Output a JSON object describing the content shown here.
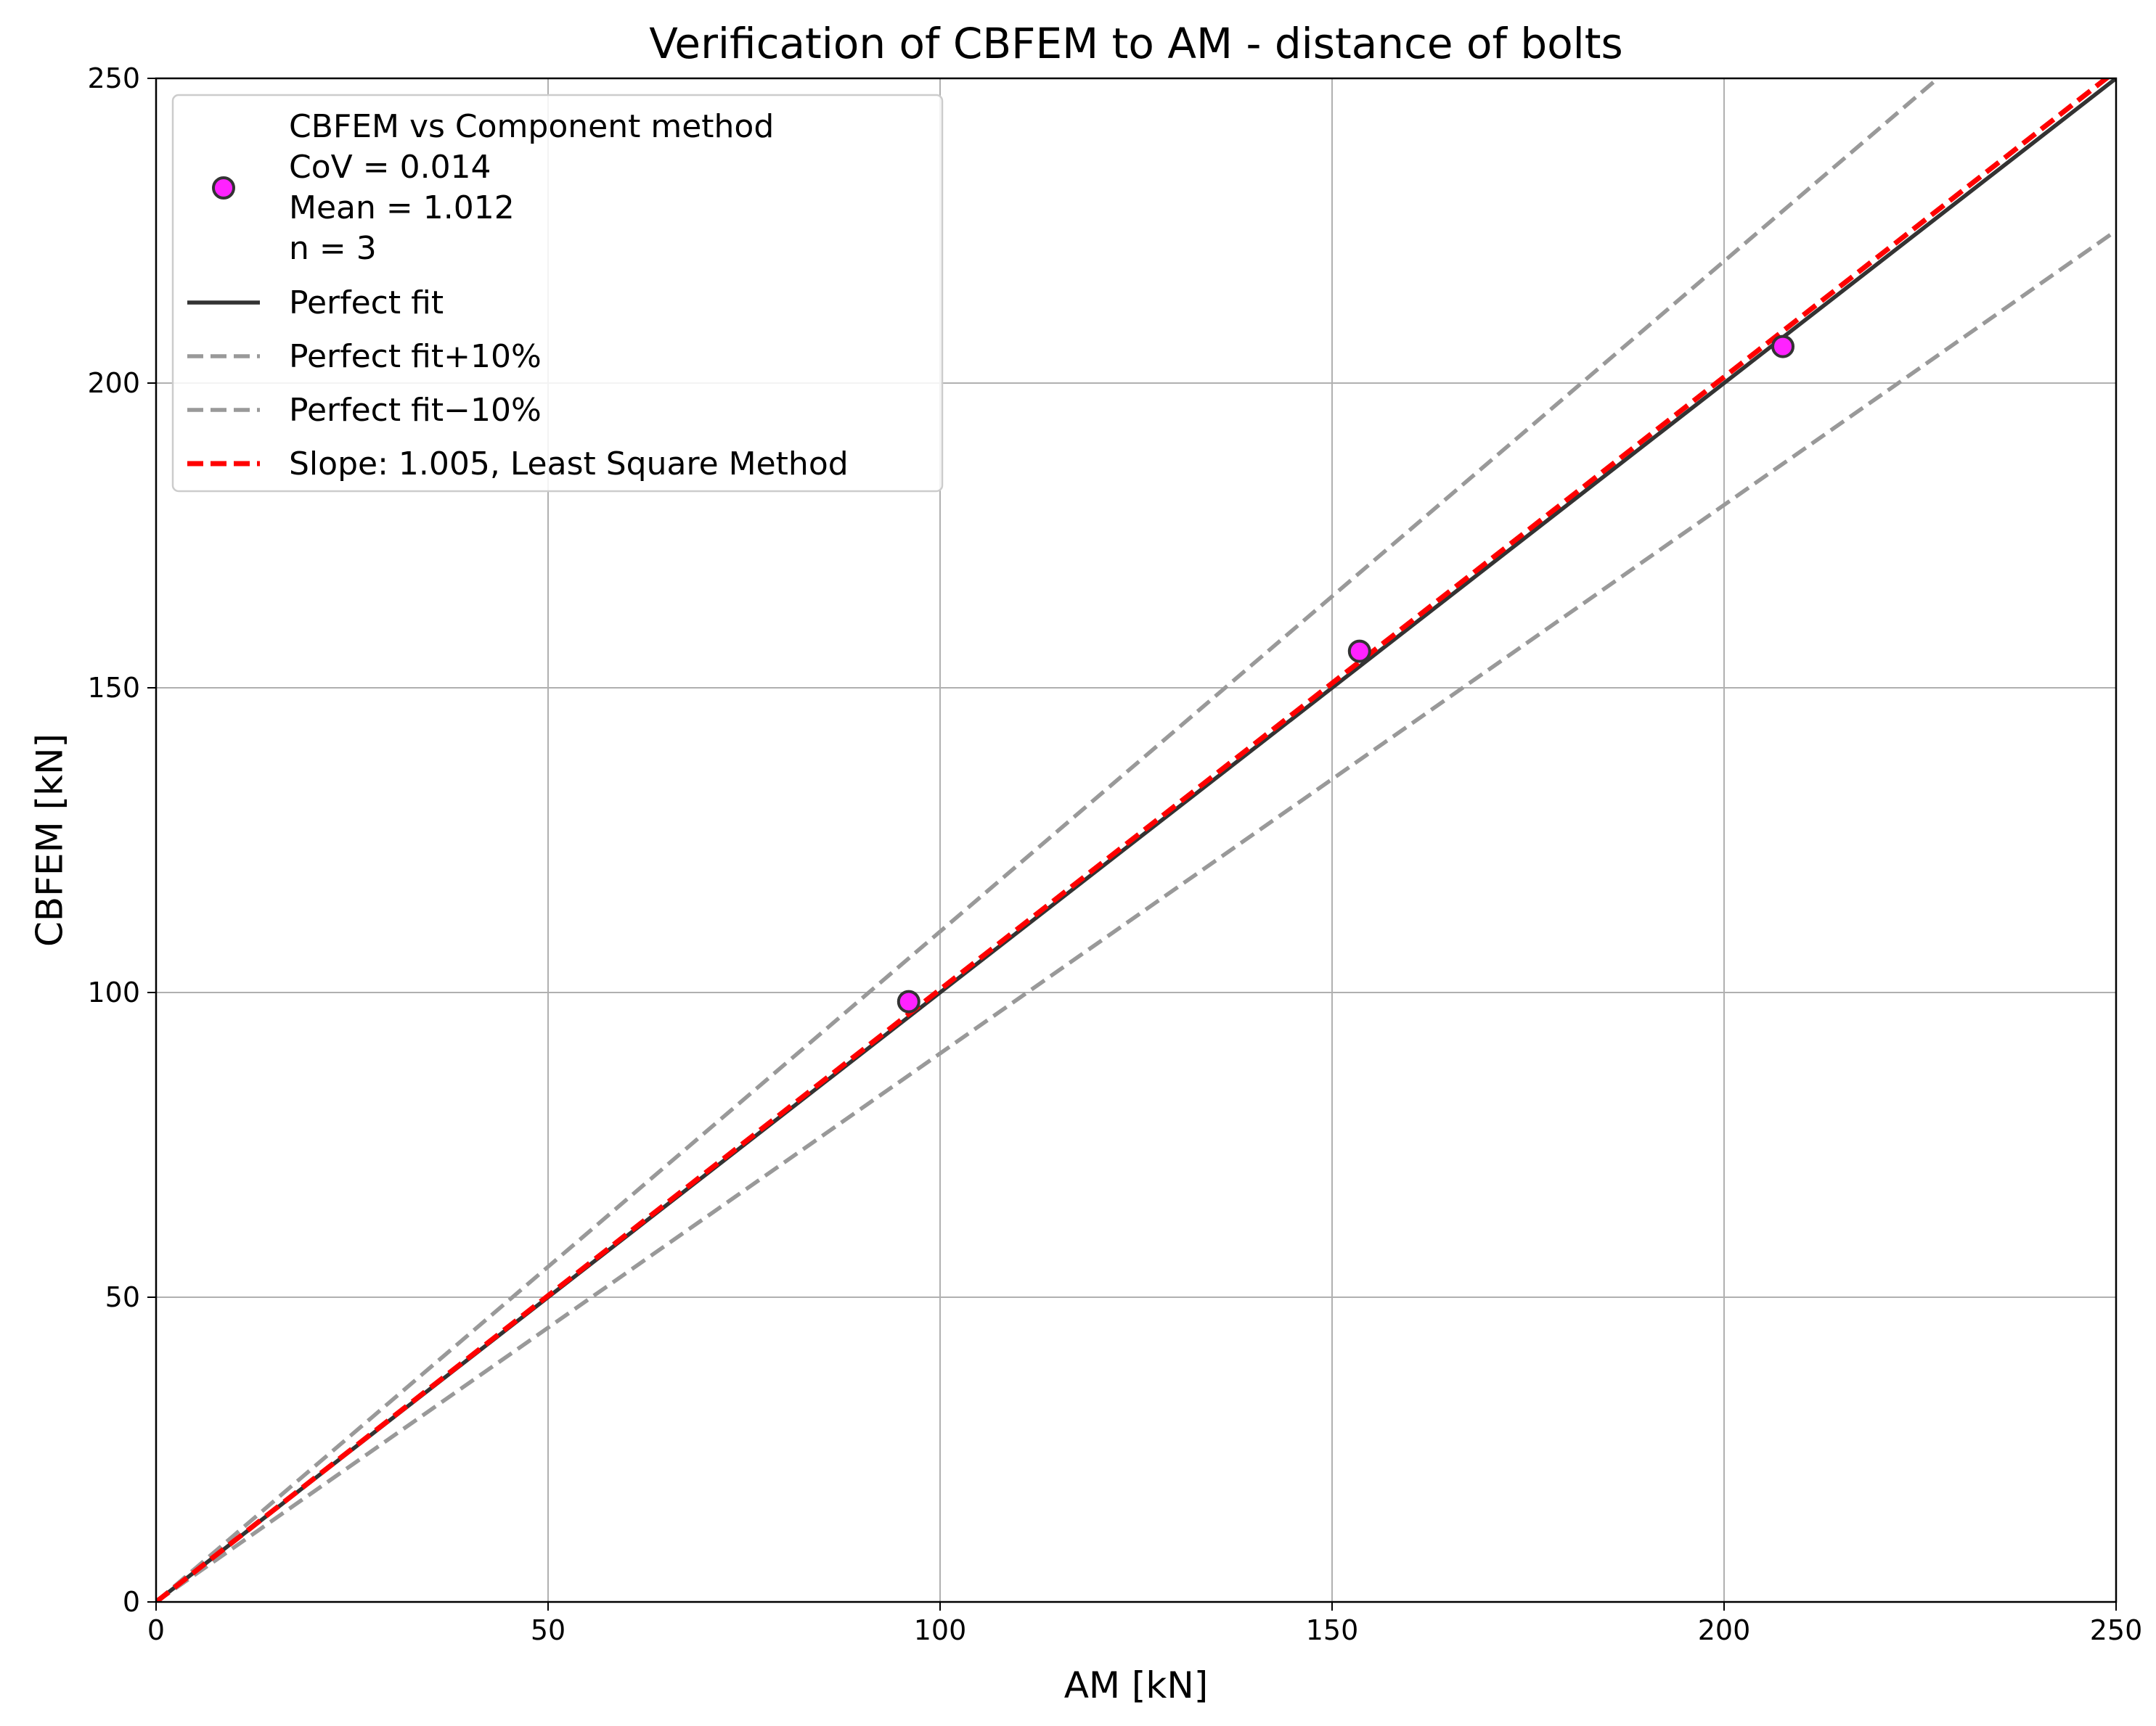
{
  "chart_data": {
    "type": "scatter",
    "title": "Verification of CBFEM to AM - distance of bolts",
    "xlabel": "AM [kN]",
    "ylabel": "CBFEM [kN]",
    "xlim": [
      0,
      250
    ],
    "ylim": [
      0,
      250
    ],
    "xticks": [
      0,
      50,
      100,
      150,
      200,
      250
    ],
    "yticks": [
      0,
      50,
      100,
      150,
      200,
      250
    ],
    "grid": true,
    "legend_position": "top-left",
    "series": [
      {
        "name": "CBFEM vs Component method\nCoV = 0.014\nMean = 1.012\nn = 3",
        "kind": "scatter",
        "color": "#ff22ff",
        "edge_color": "#333333",
        "x": [
          96,
          153.5,
          207.5
        ],
        "y": [
          98.5,
          156,
          206
        ]
      },
      {
        "name": "Perfect fit",
        "kind": "line",
        "slope": 1.0,
        "color": "#333333",
        "dash": "solid"
      },
      {
        "name": "Perfect fit+10%",
        "kind": "line",
        "slope": 1.1,
        "color": "#999999",
        "dash": "dashed"
      },
      {
        "name": "Perfect fit−10%",
        "kind": "line",
        "slope": 0.9,
        "color": "#999999",
        "dash": "dashed"
      },
      {
        "name": "Slope: 1.005, Least Square Method",
        "kind": "line",
        "slope": 1.005,
        "color": "#ff0000",
        "dash": "dashed"
      }
    ]
  }
}
